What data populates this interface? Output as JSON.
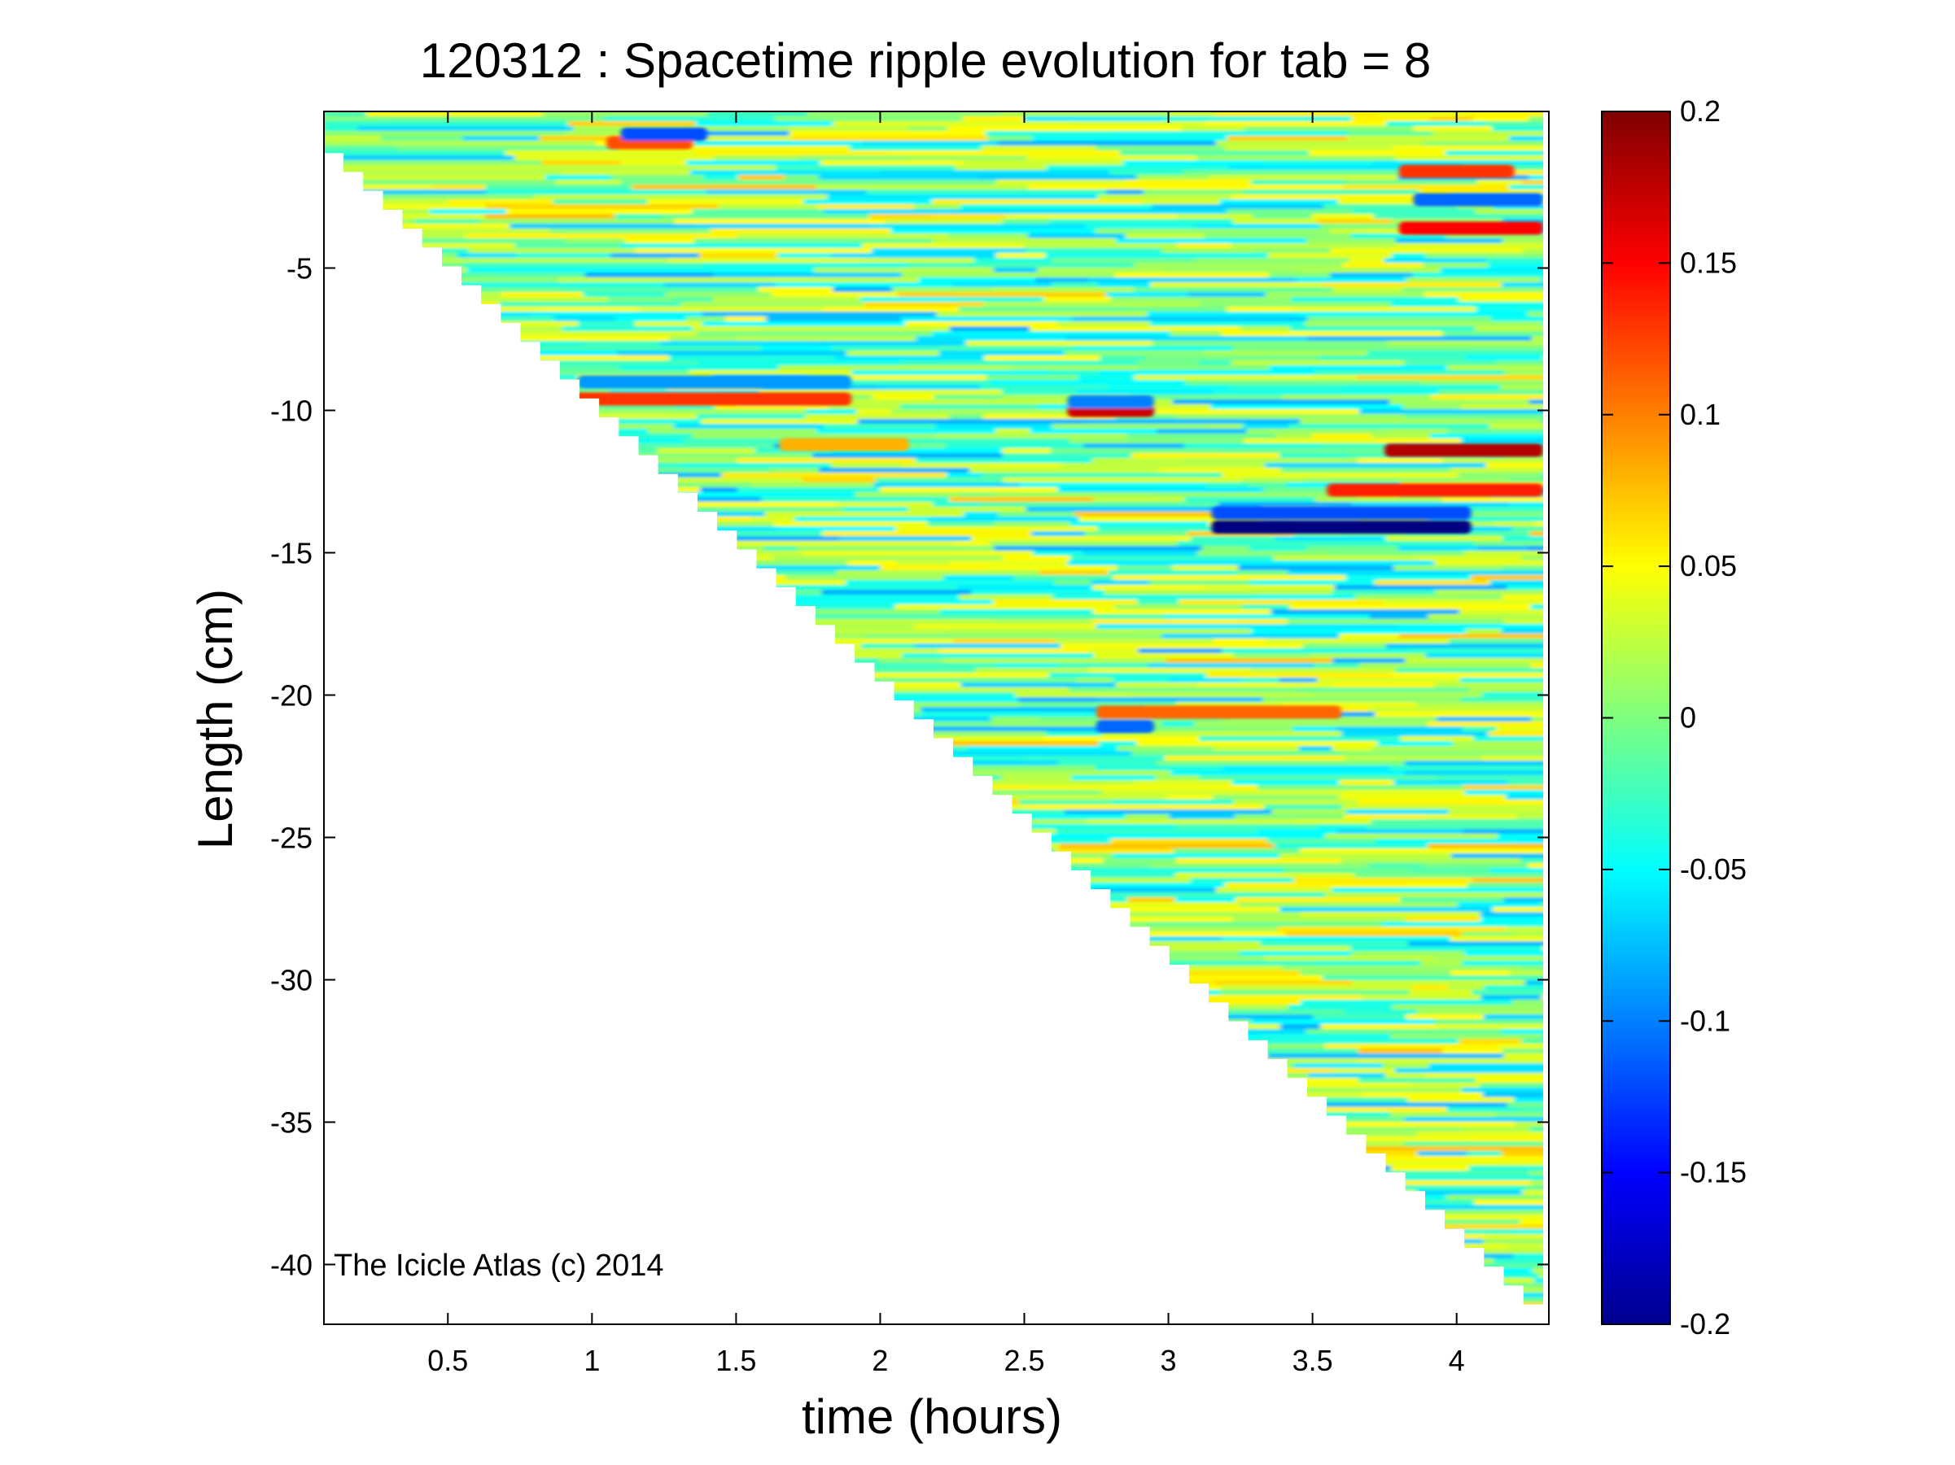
{
  "chart_data": {
    "type": "heatmap",
    "title": "120312 : Spacetime ripple evolution for tab = 8",
    "xlabel": "time (hours)",
    "ylabel": "Length (cm)",
    "xlim": [
      0.07,
      4.32
    ],
    "ylim": [
      -42.1,
      0.5
    ],
    "xticks": [
      0.5,
      1,
      1.5,
      2,
      2.5,
      3,
      3.5,
      4
    ],
    "xtick_labels": [
      "0.5",
      "1",
      "1.5",
      "2",
      "2.5",
      "3",
      "3.5",
      "4"
    ],
    "yticks": [
      -5,
      -10,
      -15,
      -20,
      -25,
      -30,
      -35,
      -40
    ],
    "ytick_labels": [
      "-5",
      "-10",
      "-15",
      "-20",
      "-25",
      "-30",
      "-35",
      "-40"
    ],
    "colorbar": {
      "colormap": "jet",
      "clim": [
        -0.2,
        0.2
      ],
      "ticks": [
        0.2,
        0.15,
        0.1,
        0.05,
        0,
        -0.05,
        -0.1,
        -0.15,
        -0.2
      ],
      "tick_labels": [
        "0.2",
        "0.15",
        "0.1",
        "0.05",
        "0",
        "-0.05",
        "-0.1",
        "-0.15",
        "-0.2"
      ]
    },
    "grid": false,
    "coverage_boundary": {
      "description_points": [
        [
          0.07,
          -0.3
        ],
        [
          4.3,
          -41.4
        ]
      ]
    },
    "features": [
      {
        "t_start": 1.05,
        "t_end": 1.35,
        "y": -0.6,
        "value": 0.12
      },
      {
        "t_start": 1.1,
        "t_end": 1.4,
        "y": -0.3,
        "value": -0.12
      },
      {
        "t_start": 0.85,
        "t_end": 1.9,
        "y": -9.6,
        "value": 0.13
      },
      {
        "t_start": 0.95,
        "t_end": 1.9,
        "y": -9.0,
        "value": -0.09
      },
      {
        "t_start": 2.65,
        "t_end": 2.95,
        "y": -10.0,
        "value": 0.17
      },
      {
        "t_start": 2.65,
        "t_end": 2.95,
        "y": -9.7,
        "value": -0.1
      },
      {
        "t_start": 3.15,
        "t_end": 4.05,
        "y": -14.1,
        "value": -0.2
      },
      {
        "t_start": 3.15,
        "t_end": 4.05,
        "y": -13.6,
        "value": -0.12
      },
      {
        "t_start": 3.55,
        "t_end": 4.3,
        "y": -12.8,
        "value": 0.14
      },
      {
        "t_start": 3.75,
        "t_end": 4.3,
        "y": -11.4,
        "value": 0.18
      },
      {
        "t_start": 3.8,
        "t_end": 4.3,
        "y": -3.6,
        "value": 0.15
      },
      {
        "t_start": 3.85,
        "t_end": 4.3,
        "y": -2.6,
        "value": -0.11
      },
      {
        "t_start": 3.8,
        "t_end": 4.2,
        "y": -1.6,
        "value": 0.13
      },
      {
        "t_start": 2.75,
        "t_end": 3.6,
        "y": -20.6,
        "value": 0.11
      },
      {
        "t_start": 2.75,
        "t_end": 2.95,
        "y": -21.1,
        "value": -0.11
      },
      {
        "t_start": 1.65,
        "t_end": 2.1,
        "y": -11.2,
        "value": 0.08
      }
    ]
  },
  "annotation": "The Icicle Atlas (c) 2014"
}
